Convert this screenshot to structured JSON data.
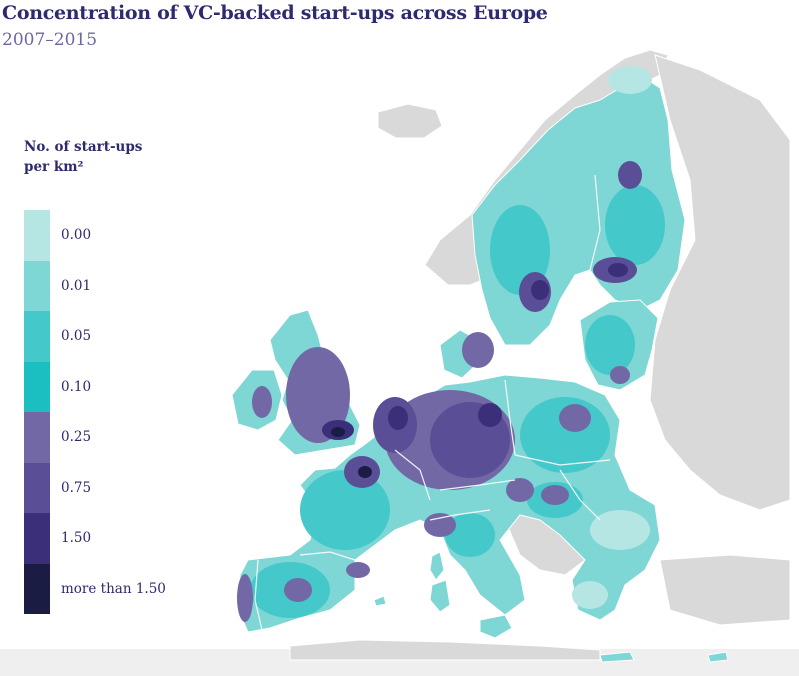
{
  "title": "Concentration of VC-backed start-ups across Europe",
  "subtitle": "2007–2015",
  "legend": {
    "title_line1": "No. of start-ups",
    "title_line2": "per km²",
    "items": [
      {
        "label": "0.00",
        "color": "#b5e6e4"
      },
      {
        "label": "0.01",
        "color": "#7ed6d5"
      },
      {
        "label": "0.05",
        "color": "#45c8ca"
      },
      {
        "label": "0.10",
        "color": "#1bbfc2"
      },
      {
        "label": "0.25",
        "color": "#7268a6"
      },
      {
        "label": "0.75",
        "color": "#5a4e96"
      },
      {
        "label": "1.50",
        "color": "#3b2f7a"
      },
      {
        "label": "more than 1.50",
        "color": "#1a1c44"
      }
    ]
  },
  "colors": {
    "non_eu_land": "#d9d9d9",
    "border": "#ffffff",
    "title": "#2e2a6e",
    "subtitle": "#6b68a3"
  }
}
